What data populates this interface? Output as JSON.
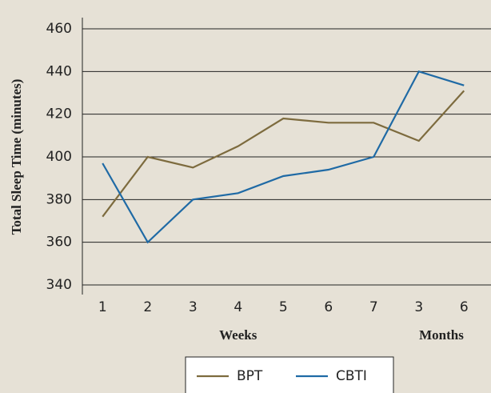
{
  "chart_data": {
    "type": "line",
    "y_label": "Total Sleep Time (minutes)",
    "categories": [
      "1",
      "2",
      "3",
      "4",
      "5",
      "6",
      "7",
      "3",
      "6"
    ],
    "groups": [
      {
        "label": "Weeks",
        "span": [
          0,
          6
        ]
      },
      {
        "label": "Months",
        "span": [
          7,
          8
        ]
      }
    ],
    "series": [
      {
        "name": "BPT",
        "color": "#7d6b3e",
        "values": [
          372,
          400,
          395,
          405,
          418,
          416,
          416,
          407.5,
          431
        ]
      },
      {
        "name": "CBTI",
        "color": "#1f6aa5",
        "values": [
          397,
          360,
          380,
          383,
          391,
          394,
          400,
          440,
          433.5
        ]
      }
    ],
    "ylim": [
      340,
      460
    ],
    "yticks": [
      340,
      360,
      380,
      400,
      420,
      440,
      460
    ],
    "grid": true,
    "legend": "bottom"
  }
}
